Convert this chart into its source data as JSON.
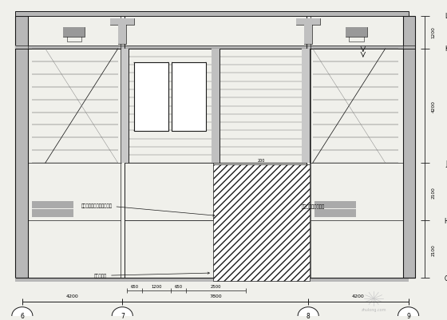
{
  "bg_color": "#f0f0eb",
  "line_color": "#1a1a1a",
  "fig_width": 5.6,
  "fig_height": 4.02,
  "dpi": 100,
  "grid_labels_bottom": [
    "6",
    "7",
    "8",
    "9"
  ],
  "grid_labels_right": [
    "G",
    "H",
    "J",
    "K",
    "L"
  ],
  "dim_bottom": [
    "4200",
    "7800",
    "4200"
  ],
  "dim_right": [
    "2100",
    "2100",
    "4200",
    "1200"
  ],
  "sub_dims": [
    650,
    1200,
    650,
    2500
  ],
  "ann1": "此区域原混凝土板人工凿凿",
  "ann2": "新增梁位置",
  "ann3": "十五层以下全部拆除",
  "watermark": "zhulong.com"
}
